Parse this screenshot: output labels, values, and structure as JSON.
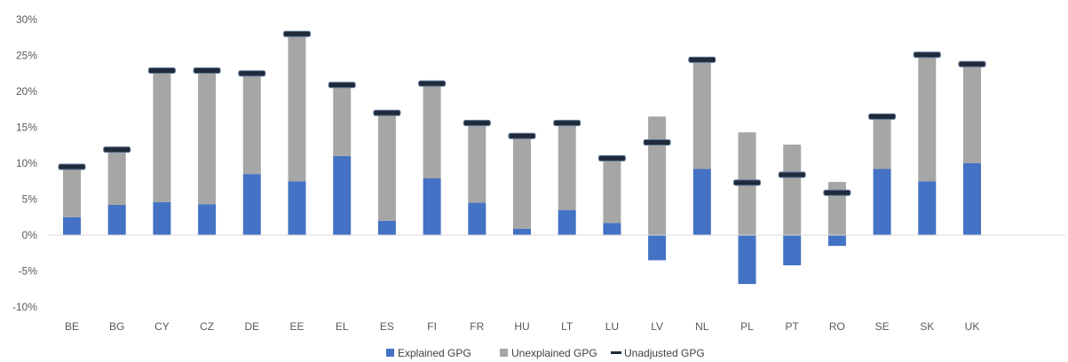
{
  "chart_data": {
    "type": "bar",
    "subtype": "stacked",
    "title": "",
    "xlabel": "",
    "ylabel": "",
    "ylim": [
      -10,
      30
    ],
    "yticks": [
      -10,
      -5,
      0,
      5,
      10,
      15,
      20,
      25,
      30
    ],
    "ytick_labels": [
      "-10%",
      "-5%",
      "0%",
      "5%",
      "10%",
      "15%",
      "20%",
      "25%",
      "30%"
    ],
    "grid": false,
    "legend_position": "bottom",
    "categories": [
      "BE",
      "BG",
      "CY",
      "CZ",
      "DE",
      "EE",
      "EL",
      "ES",
      "FI",
      "FR",
      "HU",
      "LT",
      "LU",
      "LV",
      "NL",
      "PL",
      "PT",
      "RO",
      "SE",
      "SK",
      "UK"
    ],
    "series": [
      {
        "name": "Explained GPG",
        "kind": "bar",
        "color": "#4472c4",
        "values": [
          2.5,
          4.2,
          4.6,
          4.3,
          8.5,
          7.5,
          11.0,
          2.0,
          7.9,
          4.5,
          0.9,
          3.5,
          1.7,
          -3.5,
          9.2,
          -6.8,
          -4.2,
          -1.5,
          9.2,
          7.5,
          10.0
        ]
      },
      {
        "name": "Unexplained GPG",
        "kind": "bar",
        "color": "#a6a6a6",
        "values": [
          7.0,
          7.7,
          18.3,
          18.6,
          14.0,
          20.5,
          9.8,
          15.0,
          13.2,
          11.2,
          12.9,
          12.2,
          9.1,
          16.5,
          15.2,
          14.3,
          12.6,
          7.4,
          7.3,
          17.7,
          13.8
        ]
      },
      {
        "name": "Unadjusted GPG",
        "kind": "marker",
        "color": "#1f2b3a",
        "values": [
          9.5,
          11.9,
          22.9,
          22.9,
          22.5,
          28.0,
          20.9,
          17.0,
          21.1,
          15.6,
          13.8,
          15.6,
          10.7,
          12.9,
          24.4,
          7.3,
          8.4,
          5.9,
          16.5,
          25.1,
          23.8
        ]
      }
    ]
  }
}
